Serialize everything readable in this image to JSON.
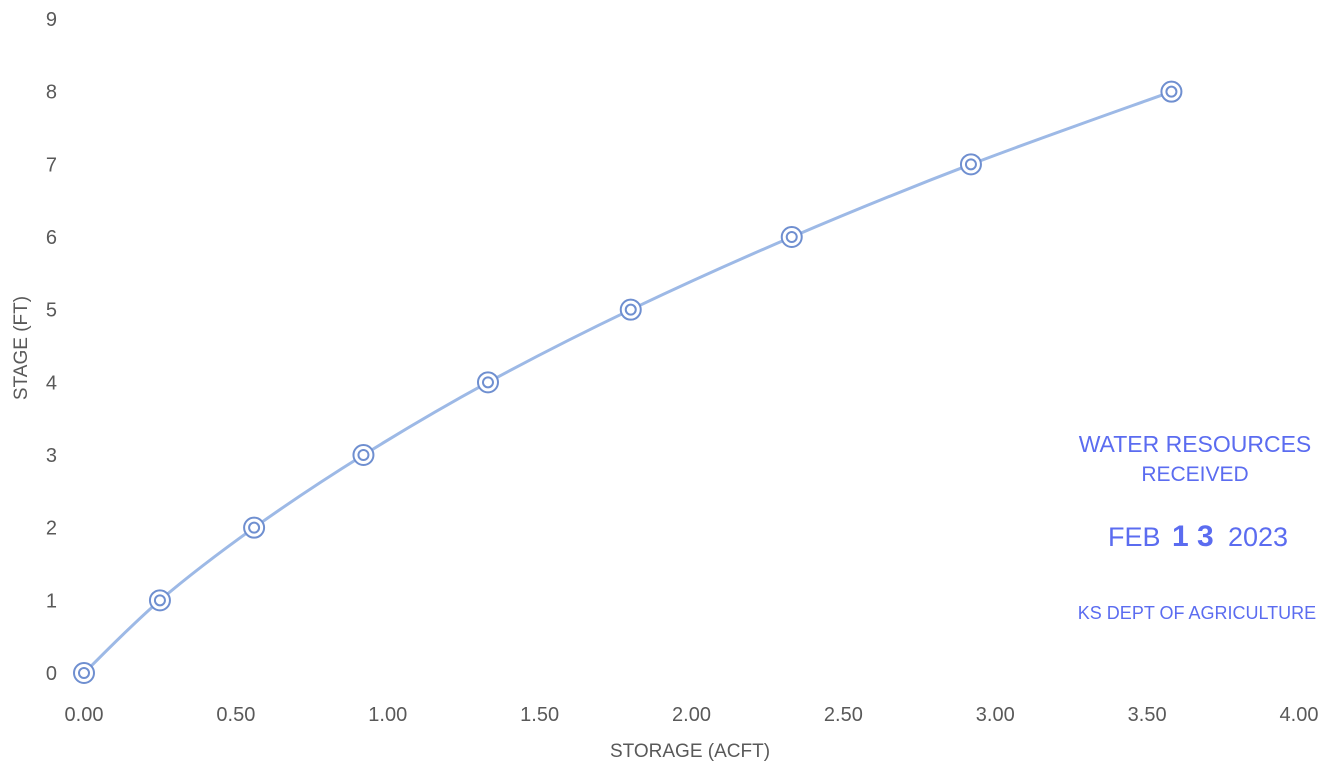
{
  "chart_data": {
    "type": "scatter",
    "title": "",
    "xlabel": "STORAGE (ACFT)",
    "ylabel": "STAGE (FT)",
    "xlim": [
      0,
      4
    ],
    "ylim": [
      0,
      9
    ],
    "x_ticks": [
      "0.00",
      "0.50",
      "1.00",
      "1.50",
      "2.00",
      "2.50",
      "3.00",
      "3.50",
      "4.00"
    ],
    "y_ticks": [
      "0",
      "1",
      "2",
      "3",
      "4",
      "5",
      "6",
      "7",
      "8",
      "9"
    ],
    "grid": false,
    "series": [
      {
        "x": [
          0.0,
          0.25,
          0.56,
          0.92,
          1.33,
          1.8,
          2.33,
          2.92,
          3.58
        ],
        "y": [
          0,
          1,
          2,
          3,
          4,
          5,
          6,
          7,
          8
        ]
      }
    ],
    "colors": {
      "line": "#9db9e6",
      "marker": "#6f8fd0",
      "axis_text": "#595959",
      "stamp": "#5b6cf0"
    }
  },
  "stamp": {
    "line1": "WATER RESOURCES",
    "line2": "RECEIVED",
    "date_month": "FEB",
    "date_day": "1 3",
    "date_year": "2023",
    "agency": "KS DEPT OF AGRICULTURE"
  }
}
